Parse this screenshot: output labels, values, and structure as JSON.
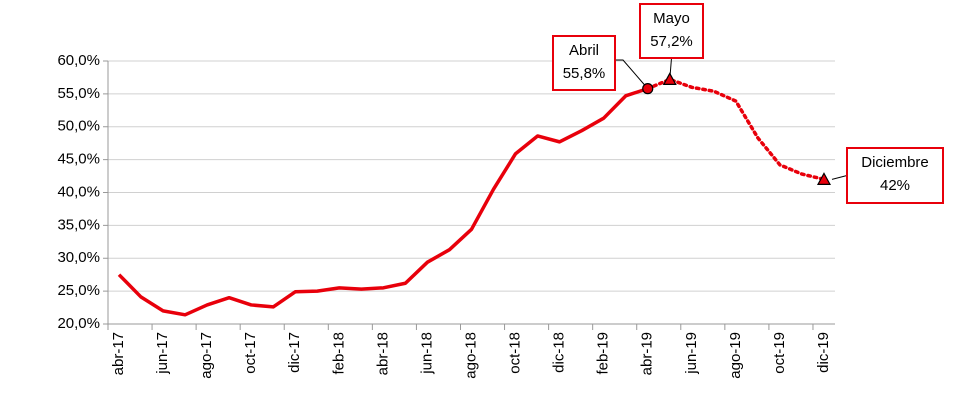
{
  "chart_data": {
    "type": "line",
    "categories": [
      "abr-17",
      null,
      "jun-17",
      null,
      "ago-17",
      null,
      "oct-17",
      null,
      "dic-17",
      null,
      "feb-18",
      null,
      "abr-18",
      null,
      "jun-18",
      null,
      "ago-18",
      null,
      "oct-18",
      null,
      "dic-18",
      null,
      "feb-19",
      null,
      "abr-19",
      null,
      "jun-19",
      null,
      "ago-19",
      null,
      "oct-19",
      null,
      "dic-19"
    ],
    "ylim": [
      20,
      60
    ],
    "yticks": [
      {
        "value": 20,
        "label": "20,0%"
      },
      {
        "value": 25,
        "label": "25,0%"
      },
      {
        "value": 30,
        "label": "30,0%"
      },
      {
        "value": 35,
        "label": "35,0%"
      },
      {
        "value": 40,
        "label": "40,0%"
      },
      {
        "value": 45,
        "label": "45,0%"
      },
      {
        "value": 50,
        "label": "50,0%"
      },
      {
        "value": 55,
        "label": "55,0%"
      },
      {
        "value": 60,
        "label": "60,0%"
      }
    ],
    "grid": true,
    "series": [
      {
        "color": "#e8000b",
        "dash": "solid",
        "marker": "circle",
        "values": [
          27.5,
          24.1,
          22.0,
          21.4,
          22.9,
          24.0,
          22.9,
          22.6,
          24.9,
          25.0,
          25.5,
          25.3,
          25.5,
          26.2,
          29.4,
          31.3,
          34.4,
          40.5,
          45.9,
          48.6,
          47.7,
          49.4,
          51.3,
          54.7,
          55.8,
          null,
          null,
          null,
          null,
          null,
          null,
          null,
          null
        ],
        "value_titles": [
          null,
          null,
          null,
          null,
          null,
          null,
          null,
          null,
          null,
          null,
          null,
          null,
          null,
          null,
          null,
          null,
          null,
          null,
          null,
          null,
          null,
          null,
          null,
          null,
          "Abril",
          null,
          null,
          null,
          null,
          null,
          null,
          null,
          null
        ],
        "value_labels": [
          null,
          null,
          null,
          null,
          null,
          null,
          null,
          null,
          null,
          null,
          null,
          null,
          null,
          null,
          null,
          null,
          null,
          null,
          null,
          null,
          null,
          null,
          null,
          null,
          "55,8%",
          null,
          null,
          null,
          null,
          null,
          null,
          null,
          null
        ]
      },
      {
        "color": "#e8000b",
        "dash": "dotted",
        "marker": "triangle",
        "values": [
          null,
          null,
          null,
          null,
          null,
          null,
          null,
          null,
          null,
          null,
          null,
          null,
          null,
          null,
          null,
          null,
          null,
          null,
          null,
          null,
          null,
          null,
          null,
          null,
          55.8,
          57.2,
          56.0,
          55.4,
          53.9,
          48.3,
          44.2,
          42.8,
          42
        ],
        "value_titles": [
          null,
          null,
          null,
          null,
          null,
          null,
          null,
          null,
          null,
          null,
          null,
          null,
          null,
          null,
          null,
          null,
          null,
          null,
          null,
          null,
          null,
          null,
          null,
          null,
          null,
          "Mayo",
          null,
          null,
          null,
          null,
          null,
          null,
          "Diciembre"
        ],
        "value_labels": [
          null,
          null,
          null,
          null,
          null,
          null,
          null,
          null,
          null,
          null,
          null,
          null,
          null,
          null,
          null,
          null,
          null,
          null,
          null,
          null,
          null,
          null,
          null,
          null,
          null,
          "57,2%",
          null,
          null,
          null,
          null,
          null,
          null,
          "42%"
        ]
      }
    ]
  }
}
